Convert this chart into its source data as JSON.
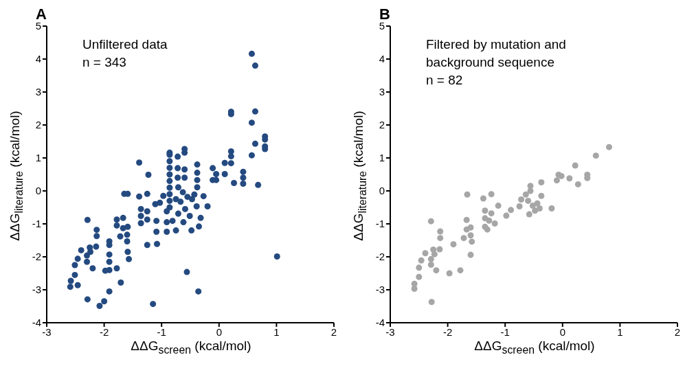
{
  "chart_data": [
    {
      "type": "scatter",
      "title": "A",
      "xlabel": "ΔΔG$_{screen}$ (kcal/mol)",
      "ylabel": "ΔΔG$_{literature}$ (kcal/mol)",
      "annotations": [
        "Unfiltered data",
        "n = 343"
      ],
      "xlim": [
        -3,
        2
      ],
      "ylim": [
        -4,
        5
      ],
      "xticks": [
        -3,
        -2,
        -1,
        0,
        1,
        2
      ],
      "yticks": [
        -4,
        -3,
        -2,
        -1,
        0,
        1,
        2,
        3,
        4,
        5
      ],
      "marker": "circle",
      "series": [
        {
          "color": "#244a80",
          "x": [
            0.57,
            0.63,
            0.21,
            0.21,
            0.63,
            0.57,
            0.8,
            0.8,
            0.63,
            0.8,
            0.8,
            0.57,
            0.68,
            0.21,
            0.21,
            0.21,
            0.1,
            0.1,
            0.26,
            0.42,
            0.42,
            0.42,
            -0.11,
            -0.05,
            -0.11,
            -0.05,
            1.01,
            -0.6,
            -0.6,
            -0.86,
            -0.86,
            -0.86,
            -0.86,
            -0.86,
            -0.86,
            -0.86,
            -0.86,
            -0.86,
            -0.86,
            -0.72,
            -0.72,
            -0.72,
            -0.6,
            -0.6,
            -0.38,
            -0.38,
            -0.38,
            -0.38,
            -0.27,
            -0.2,
            -0.32,
            -0.35,
            -0.48,
            -0.62,
            -0.75,
            -0.56,
            -0.36,
            -1.15,
            -1.39,
            -1.23,
            -1.25,
            -1.39,
            -0.97,
            -1.65,
            -1.59,
            -1.11,
            -1.03,
            -1.36,
            -1.36,
            -1.36,
            -1.25,
            -1.25,
            -1.09,
            -1.09,
            -0.91,
            -0.91,
            -0.91,
            -1.25,
            -1.08,
            -1.78,
            -1.78,
            -1.67,
            -1.67,
            -1.59,
            -1.6,
            -1.6,
            -1.72,
            -1.59,
            -1.57,
            -1.91,
            -1.91,
            -1.91,
            -1.91,
            -1.91,
            -1.98,
            -1.78,
            -1.71,
            -1.91,
            -2.0,
            -2.08,
            -2.29,
            -2.29,
            -2.13,
            -2.13,
            -2.14,
            -2.25,
            -2.24,
            -2.3,
            -2.3,
            -2.2,
            -2.4,
            -2.46,
            -2.51,
            -2.51,
            -2.58,
            -2.59,
            -2.46,
            -0.71,
            -0.63,
            -0.55,
            -0.67,
            -0.47,
            -0.39,
            -0.59,
            -0.71,
            -0.51,
            -0.43,
            -0.75,
            -0.81
          ],
          "values": [
            4.16,
            3.8,
            2.4,
            2.33,
            2.41,
            2.07,
            1.65,
            1.56,
            1.43,
            1.35,
            1.27,
            1.08,
            0.18,
            1.2,
            1.05,
            0.84,
            0.85,
            0.51,
            0.24,
            0.58,
            0.4,
            0.22,
            0.69,
            0.51,
            0.33,
            0.33,
            -1.99,
            1.27,
            1.16,
            1.1,
            0.9,
            0.7,
            0.5,
            0.3,
            0.1,
            -0.1,
            -0.3,
            -0.5,
            1.16,
            1.04,
            0.69,
            0.4,
            0.65,
            0.4,
            0.8,
            0.55,
            0.33,
            0.11,
            -0.16,
            -0.47,
            -0.82,
            -1.08,
            -1.2,
            -0.95,
            -1.2,
            -2.46,
            -3.05,
            -3.43,
            0.86,
            0.49,
            -0.09,
            -0.17,
            -0.15,
            -0.09,
            -0.09,
            -0.4,
            -0.36,
            -0.55,
            -0.76,
            -0.98,
            -0.62,
            -0.87,
            -0.91,
            -1.24,
            -0.62,
            -0.95,
            -1.24,
            -1.64,
            -1.61,
            -0.87,
            -1.05,
            -0.82,
            -1.13,
            -1.09,
            -1.33,
            -1.53,
            -1.38,
            -1.85,
            -2.07,
            -1.53,
            -1.64,
            -1.93,
            -2.15,
            -2.4,
            -2.42,
            -2.35,
            -2.78,
            -3.05,
            -3.35,
            -3.49,
            -3.29,
            -0.88,
            -1.18,
            -1.37,
            -1.69,
            -1.72,
            -1.85,
            -1.96,
            -2.15,
            -2.35,
            -1.8,
            -2.06,
            -2.25,
            -2.55,
            -2.73,
            -2.91,
            -2.86,
            0.11,
            -0.04,
            -0.18,
            -0.33,
            -0.25,
            -0.47,
            -0.55,
            -0.69,
            -0.76,
            -0.11,
            -0.25,
            -0.91
          ]
        }
      ]
    },
    {
      "type": "scatter",
      "title": "B",
      "xlabel": "ΔΔG$_{screen}$ (kcal/mol)",
      "ylabel": "ΔΔG$_{literature}$ (kcal/mol)",
      "annotations": [
        "Filtered by mutation and",
        "background sequence",
        "n = 82"
      ],
      "xlim": [
        -3,
        2
      ],
      "ylim": [
        -4,
        5
      ],
      "xticks": [
        -3,
        -2,
        -1,
        0,
        1,
        2
      ],
      "yticks": [
        -4,
        -3,
        -2,
        -1,
        0,
        1,
        2,
        3,
        4,
        5
      ],
      "marker": "circle",
      "series": [
        {
          "color": "#a6a6a6",
          "x": [
            0.81,
            0.58,
            0.22,
            -0.07,
            -0.02,
            -0.1,
            0.12,
            0.43,
            0.43,
            0.27,
            -0.37,
            -0.56,
            -0.56,
            -0.37,
            -0.19,
            -0.64,
            -0.72,
            -0.75,
            -0.6,
            -0.52,
            -0.44,
            -0.4,
            -0.58,
            -0.48,
            -0.9,
            -0.98,
            -1.12,
            -1.24,
            -1.38,
            -1.66,
            -1.35,
            -1.35,
            -1.24,
            -1.28,
            -1.18,
            -1.35,
            -1.31,
            -1.67,
            -1.67,
            -1.6,
            -1.6,
            -1.58,
            -1.72,
            -1.6,
            -1.9,
            -1.78,
            -1.97,
            -2.29,
            -2.13,
            -2.13,
            -2.14,
            -2.25,
            -2.23,
            -2.29,
            -2.29,
            -2.2,
            -2.39,
            -2.46,
            -2.5,
            -2.5,
            -2.58,
            -2.58,
            -2.28
          ],
          "values": [
            1.33,
            1.07,
            0.77,
            0.49,
            0.45,
            0.32,
            0.38,
            0.49,
            0.39,
            0.2,
            0.26,
            0.15,
            0,
            -0.15,
            -0.53,
            -0.11,
            -0.26,
            -0.47,
            -0.3,
            -0.45,
            -0.38,
            -0.53,
            -0.71,
            -0.6,
            -0.58,
            -0.75,
            -0.45,
            -0.1,
            -0.23,
            -0.11,
            -0.6,
            -0.83,
            -0.68,
            -0.9,
            -0.99,
            -1.09,
            -1.17,
            -0.88,
            -1.17,
            -1.11,
            -1.35,
            -1.54,
            -1.43,
            -1.94,
            -1.62,
            -2.41,
            -2.5,
            -0.92,
            -1.23,
            -1.43,
            -1.77,
            -1.78,
            -1.92,
            -2.07,
            -2.24,
            -2.41,
            -1.89,
            -2.11,
            -2.33,
            -2.61,
            -2.82,
            -2.97,
            -3.37
          ]
        }
      ]
    }
  ]
}
